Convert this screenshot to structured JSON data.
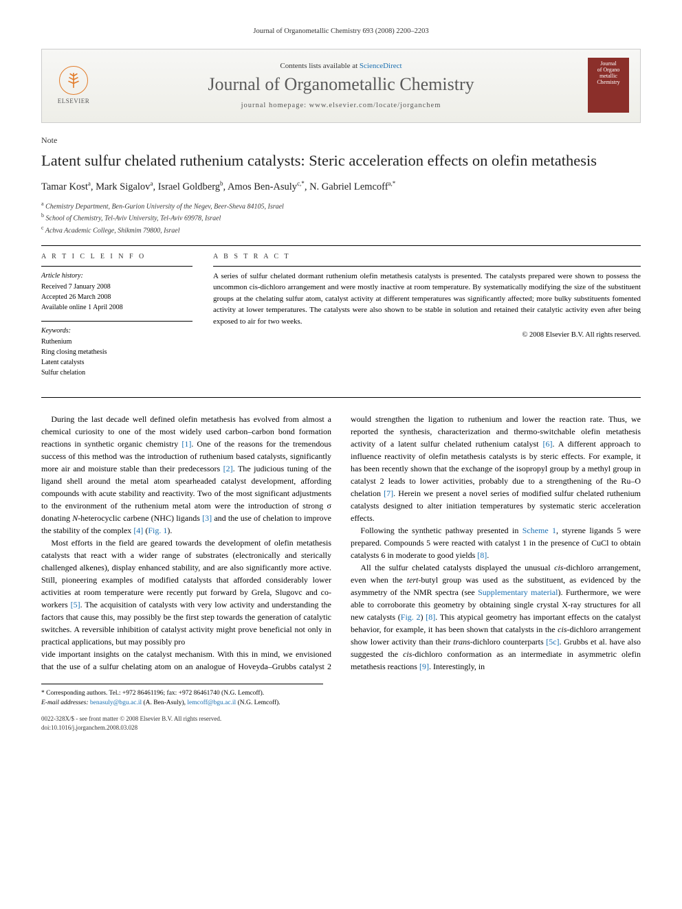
{
  "running_header": "Journal of Organometallic Chemistry 693 (2008) 2200–2203",
  "banner": {
    "publisher": "ELSEVIER",
    "contents_prefix": "Contents lists available at ",
    "contents_link": "ScienceDirect",
    "journal_title": "Journal of Organometallic Chemistry",
    "homepage_label": "journal homepage: www.elsevier.com/locate/jorganchem",
    "cover_line1": "Journal",
    "cover_line2": "of Organo",
    "cover_line3": "metallic",
    "cover_line4": "Chemistry"
  },
  "section_label": "Note",
  "title": "Latent sulfur chelated ruthenium catalysts: Steric acceleration effects on olefin metathesis",
  "authors_html": "Tamar Kost<sup>a</sup>, Mark Sigalov<sup>a</sup>, Israel Goldberg<sup>b</sup>, Amos Ben-Asuly<sup>c,*</sup>, N. Gabriel Lemcoff<sup>a,*</sup>",
  "affiliations": [
    {
      "sup": "a",
      "text": "Chemistry Department, Ben-Gurion University of the Negev, Beer-Sheva 84105, Israel"
    },
    {
      "sup": "b",
      "text": "School of Chemistry, Tel-Aviv University, Tel-Aviv 69978, Israel"
    },
    {
      "sup": "c",
      "text": "Achva Academic College, Shikmim 79800, Israel"
    }
  ],
  "article_info": {
    "heading": "A R T I C L E   I N F O",
    "history_label": "Article history:",
    "received": "Received 7 January 2008",
    "accepted": "Accepted 26 March 2008",
    "online": "Available online 1 April 2008",
    "keywords_label": "Keywords:",
    "keywords": [
      "Ruthenium",
      "Ring closing metathesis",
      "Latent catalysts",
      "Sulfur chelation"
    ]
  },
  "abstract": {
    "heading": "A B S T R A C T",
    "text": "A series of sulfur chelated dormant ruthenium olefin metathesis catalysts is presented. The catalysts prepared were shown to possess the uncommon cis-dichloro arrangement and were mostly inactive at room temperature. By systematically modifying the size of the substituent groups at the chelating sulfur atom, catalyst activity at different temperatures was significantly affected; more bulky substituents fomented activity at lower temperatures. The catalysts were also shown to be stable in solution and retained their catalytic activity even after being exposed to air for two weeks.",
    "copyright": "© 2008 Elsevier B.V. All rights reserved."
  },
  "body": {
    "p1": "During the last decade well defined olefin metathesis has evolved from almost a chemical curiosity to one of the most widely used carbon–carbon bond formation reactions in synthetic organic chemistry [1]. One of the reasons for the tremendous success of this method was the introduction of ruthenium based catalysts, significantly more air and moisture stable than their predecessors [2]. The judicious tuning of the ligand shell around the metal atom spearheaded catalyst development, affording compounds with acute stability and reactivity. Two of the most significant adjustments to the environment of the ruthenium metal atom were the introduction of strong σ donating N-heterocyclic carbene (NHC) ligands [3] and the use of chelation to improve the stability of the complex [4] (Fig. 1).",
    "p2": "Most efforts in the field are geared towards the development of olefin metathesis catalysts that react with a wider range of substrates (electronically and sterically challenged alkenes), display enhanced stability, and are also significantly more active. Still, pioneering examples of modified catalysts that afforded considerably lower activities at room temperature were recently put forward by Grela, Slugovc and co-workers [5]. The acquisition of catalysts with very low activity and understanding the factors that cause this, may possibly be the first step towards the generation of catalytic switches. A reversible inhibition of catalyst activity might prove beneficial not only in practical applications, but may possibly pro",
    "p2b": "vide important insights on the catalyst mechanism. With this in mind, we envisioned that the use of a sulfur chelating atom on an analogue of Hoveyda–Grubbs catalyst 2 would strengthen the ligation to ruthenium and lower the reaction rate. Thus, we reported the synthesis, characterization and thermo-switchable olefin metathesis activity of a latent sulfur chelated ruthenium catalyst [6]. A different approach to influence reactivity of olefin metathesis catalysts is by steric effects. For example, it has been recently shown that the exchange of the isopropyl group by a methyl group in catalyst 2 leads to lower activities, probably due to a strengthening of the Ru–O chelation [7]. Herein we present a novel series of modified sulfur chelated ruthenium catalysts designed to alter initiation temperatures by systematic steric acceleration effects.",
    "p3": "Following the synthetic pathway presented in Scheme 1, styrene ligands 5 were prepared. Compounds 5 were reacted with catalyst 1 in the presence of CuCl to obtain catalysts 6 in moderate to good yields [8].",
    "p4": "All the sulfur chelated catalysts displayed the unusual cis-dichloro arrangement, even when the tert-butyl group was used as the substituent, as evidenced by the asymmetry of the NMR spectra (see Supplementary material). Furthermore, we were able to corroborate this geometry by obtaining single crystal X-ray structures for all new catalysts (Fig. 2) [8]. This atypical geometry has important effects on the catalyst behavior, for example, it has been shown that catalysts in the cis-dichloro arrangement show lower activity than their trans-dichloro counterparts [5c]. Grubbs et al. have also suggested the cis-dichloro conformation as an intermediate in asymmetric olefin metathesis reactions [9]. Interestingly, in"
  },
  "footnotes": {
    "corr": "* Corresponding authors. Tel.: +972 86461196; fax: +972 86461740 (N.G. Lemcoff).",
    "email_label": "E-mail addresses:",
    "email1": "benasuly@bgu.ac.il",
    "email1_who": " (A. Ben-Asuly), ",
    "email2": "lemcoff@bgu.ac.il",
    "email2_who": " (N.G. Lemcoff)."
  },
  "footer": {
    "line1": "0022-328X/$ - see front matter © 2008 Elsevier B.V. All rights reserved.",
    "line2": "doi:10.1016/j.jorganchem.2008.03.028"
  },
  "colors": {
    "link": "#1a6fb0",
    "banner_bg_top": "#f7f7f5",
    "banner_bg_bottom": "#eeeee8",
    "cover_bg": "#8b2f2a",
    "elsevier_orange": "#e27c2a"
  }
}
